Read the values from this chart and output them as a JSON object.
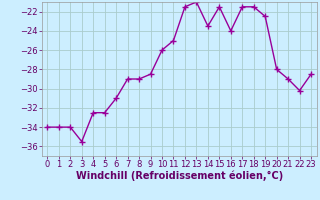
{
  "x": [
    0,
    1,
    2,
    3,
    4,
    5,
    6,
    7,
    8,
    9,
    10,
    11,
    12,
    13,
    14,
    15,
    16,
    17,
    18,
    19,
    20,
    21,
    22,
    23
  ],
  "y": [
    -34,
    -34,
    -34,
    -35.5,
    -32.5,
    -32.5,
    -31,
    -29,
    -29,
    -28.5,
    -26,
    -25,
    -21.5,
    -21,
    -23.5,
    -21.5,
    -24,
    -21.5,
    -21.5,
    -22.5,
    -28,
    -29,
    -30.2,
    -28.5
  ],
  "line_color": "#990099",
  "marker": "+",
  "marker_size": 5,
  "bg_color": "#cceeff",
  "grid_color": "#aacccc",
  "xlabel": "Windchill (Refroidissement éolien,°C)",
  "xlabel_fontsize": 7,
  "tick_fontsize": 6,
  "ylim": [
    -37,
    -21
  ],
  "yticks": [
    -36,
    -34,
    -32,
    -30,
    -28,
    -26,
    -24,
    -22
  ],
  "xticks": [
    0,
    1,
    2,
    3,
    4,
    5,
    6,
    7,
    8,
    9,
    10,
    11,
    12,
    13,
    14,
    15,
    16,
    17,
    18,
    19,
    20,
    21,
    22,
    23
  ],
  "linewidth": 1.0
}
